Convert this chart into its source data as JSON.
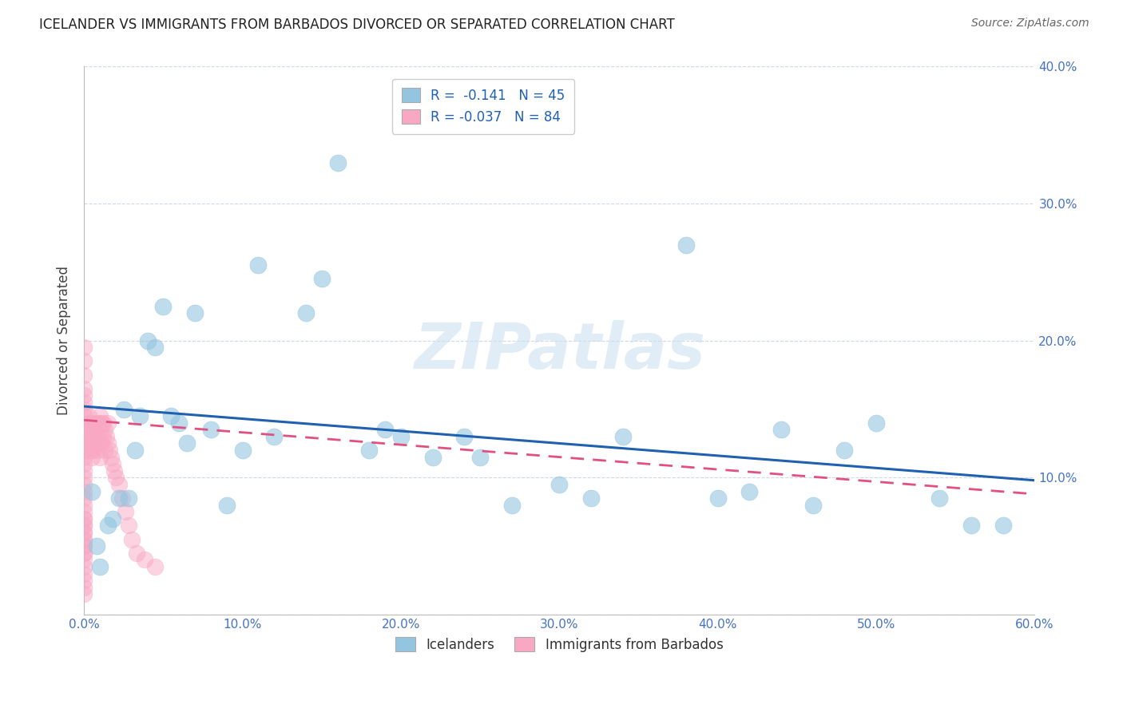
{
  "title": "ICELANDER VS IMMIGRANTS FROM BARBADOS DIVORCED OR SEPARATED CORRELATION CHART",
  "source": "Source: ZipAtlas.com",
  "ylabel": "Divorced or Separated",
  "xlim": [
    0.0,
    0.6
  ],
  "ylim": [
    0.0,
    0.4
  ],
  "xtick_labels": [
    "0.0%",
    "10.0%",
    "20.0%",
    "30.0%",
    "40.0%",
    "50.0%",
    "60.0%"
  ],
  "ytick_labels": [
    "",
    "10.0%",
    "20.0%",
    "30.0%",
    "40.0%"
  ],
  "legend_label1": "Icelanders",
  "legend_label2": "Immigrants from Barbados",
  "R1": -0.141,
  "N1": 45,
  "R2": -0.037,
  "N2": 84,
  "color1": "#94c5e0",
  "color2": "#f9a8c4",
  "line_color1": "#2060b0",
  "line_color2": "#e05080",
  "background_color": "#ffffff",
  "grid_color": "#d0d8e8",
  "watermark": "ZIPatlas",
  "tick_color": "#4472c4",
  "title_color": "#222222",
  "source_color": "#666666",
  "ylabel_color": "#444444",
  "icelanders_x": [
    0.005,
    0.008,
    0.01,
    0.015,
    0.018,
    0.022,
    0.025,
    0.028,
    0.032,
    0.035,
    0.04,
    0.045,
    0.05,
    0.055,
    0.06,
    0.065,
    0.07,
    0.08,
    0.09,
    0.1,
    0.11,
    0.12,
    0.14,
    0.15,
    0.16,
    0.18,
    0.19,
    0.2,
    0.22,
    0.24,
    0.25,
    0.27,
    0.3,
    0.32,
    0.34,
    0.38,
    0.4,
    0.42,
    0.44,
    0.46,
    0.48,
    0.5,
    0.54,
    0.56,
    0.58
  ],
  "icelanders_y": [
    0.09,
    0.05,
    0.035,
    0.065,
    0.07,
    0.085,
    0.15,
    0.085,
    0.12,
    0.145,
    0.2,
    0.195,
    0.225,
    0.145,
    0.14,
    0.125,
    0.22,
    0.135,
    0.08,
    0.12,
    0.255,
    0.13,
    0.22,
    0.245,
    0.33,
    0.12,
    0.135,
    0.13,
    0.115,
    0.13,
    0.115,
    0.08,
    0.095,
    0.085,
    0.13,
    0.27,
    0.085,
    0.09,
    0.135,
    0.08,
    0.12,
    0.14,
    0.085,
    0.065,
    0.065
  ],
  "barbados_x": [
    0.0,
    0.0,
    0.0,
    0.0,
    0.0,
    0.0,
    0.0,
    0.0,
    0.0,
    0.0,
    0.0,
    0.0,
    0.0,
    0.0,
    0.0,
    0.0,
    0.0,
    0.0,
    0.0,
    0.0,
    0.0,
    0.0,
    0.0,
    0.0,
    0.0,
    0.0,
    0.0,
    0.0,
    0.0,
    0.0,
    0.0,
    0.0,
    0.0,
    0.0,
    0.0,
    0.0,
    0.0,
    0.0,
    0.0,
    0.0,
    0.003,
    0.003,
    0.003,
    0.004,
    0.004,
    0.005,
    0.005,
    0.005,
    0.005,
    0.006,
    0.006,
    0.007,
    0.007,
    0.008,
    0.008,
    0.008,
    0.009,
    0.009,
    0.01,
    0.01,
    0.01,
    0.01,
    0.011,
    0.011,
    0.012,
    0.012,
    0.013,
    0.013,
    0.014,
    0.015,
    0.015,
    0.016,
    0.017,
    0.018,
    0.019,
    0.02,
    0.022,
    0.024,
    0.026,
    0.028,
    0.03,
    0.033,
    0.038,
    0.045
  ],
  "barbados_y": [
    0.195,
    0.185,
    0.175,
    0.165,
    0.16,
    0.155,
    0.15,
    0.145,
    0.14,
    0.135,
    0.13,
    0.125,
    0.12,
    0.115,
    0.11,
    0.105,
    0.1,
    0.095,
    0.09,
    0.085,
    0.08,
    0.075,
    0.07,
    0.065,
    0.06,
    0.055,
    0.05,
    0.045,
    0.04,
    0.035,
    0.03,
    0.025,
    0.02,
    0.015,
    0.07,
    0.065,
    0.06,
    0.055,
    0.05,
    0.045,
    0.145,
    0.13,
    0.12,
    0.14,
    0.125,
    0.135,
    0.13,
    0.12,
    0.115,
    0.14,
    0.135,
    0.135,
    0.125,
    0.14,
    0.13,
    0.12,
    0.14,
    0.125,
    0.145,
    0.135,
    0.125,
    0.115,
    0.14,
    0.125,
    0.14,
    0.13,
    0.135,
    0.12,
    0.13,
    0.14,
    0.125,
    0.12,
    0.115,
    0.11,
    0.105,
    0.1,
    0.095,
    0.085,
    0.075,
    0.065,
    0.055,
    0.045,
    0.04,
    0.035
  ],
  "line1_x0": 0.0,
  "line1_y0": 0.152,
  "line1_x1": 0.6,
  "line1_y1": 0.098,
  "line2_x0": 0.0,
  "line2_y0": 0.142,
  "line2_x1": 0.6,
  "line2_y1": 0.088
}
